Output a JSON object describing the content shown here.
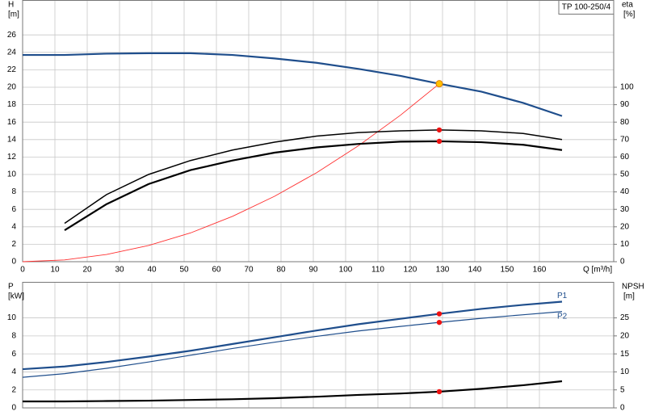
{
  "chart_data": [
    {
      "type": "line",
      "title": "TP 100-250/4",
      "xlabel": "Q [m³/h]",
      "ylabel": "H",
      "yunit": "[m]",
      "y2label": "eta",
      "y2unit": "[%]",
      "xlim": [
        0,
        183
      ],
      "ylim": [
        0,
        30
      ],
      "y2lim": [
        0,
        150
      ],
      "xticks": [
        0,
        10,
        20,
        30,
        40,
        50,
        60,
        70,
        80,
        90,
        100,
        110,
        120,
        130,
        140,
        150,
        160
      ],
      "yticks": [
        0,
        2,
        4,
        6,
        8,
        10,
        12,
        14,
        16,
        18,
        20,
        22,
        24,
        26
      ],
      "y2ticks": [
        0,
        10,
        20,
        30,
        40,
        50,
        60,
        70,
        80,
        90,
        100
      ],
      "grid": true,
      "operating_point": {
        "x": 129,
        "y": 20.4,
        "color": "#ffc000"
      },
      "series": [
        {
          "color": "#1f4e8c",
          "width": 2.2,
          "axis": "y",
          "x": [
            0,
            13,
            26,
            39,
            52,
            65,
            78,
            91,
            104,
            117,
            129,
            142,
            155,
            167
          ],
          "values": [
            23.7,
            23.7,
            23.85,
            23.9,
            23.9,
            23.7,
            23.3,
            22.8,
            22.1,
            21.3,
            20.4,
            19.5,
            18.2,
            16.7
          ]
        },
        {
          "color": "#ff3030",
          "width": 0.9,
          "axis": "y",
          "x": [
            0,
            13,
            26,
            39,
            52,
            65,
            78,
            91,
            104,
            117,
            129
          ],
          "values": [
            0,
            0.2,
            0.83,
            1.86,
            3.3,
            5.2,
            7.5,
            10.2,
            13.3,
            16.8,
            20.4
          ]
        },
        {
          "color": "#000000",
          "width": 1.5,
          "axis": "y2",
          "marker": "#ee1111",
          "x": [
            13,
            26,
            39,
            52,
            65,
            78,
            91,
            104,
            117,
            129,
            142,
            155,
            167
          ],
          "values": [
            22,
            38.5,
            50,
            58,
            64,
            68.5,
            72,
            74,
            75,
            75.5,
            75,
            73.5,
            70
          ]
        },
        {
          "color": "#000000",
          "width": 2.2,
          "axis": "y2",
          "marker": "#ee1111",
          "x": [
            13,
            26,
            39,
            52,
            65,
            78,
            91,
            104,
            117,
            129,
            142,
            155,
            167
          ],
          "values": [
            18,
            33,
            44.5,
            52.5,
            58,
            62.5,
            65.5,
            67.5,
            68.8,
            69,
            68.5,
            67,
            64
          ]
        }
      ]
    },
    {
      "type": "line",
      "ylabel": "P",
      "yunit": "[kW]",
      "y2label": "NPSH",
      "y2unit": "[m]",
      "xlim": [
        0,
        183
      ],
      "ylim": [
        0,
        14
      ],
      "y2lim": [
        0,
        35
      ],
      "yticks": [
        0,
        2,
        4,
        6,
        8,
        10
      ],
      "y2ticks": [
        0,
        5,
        10,
        15,
        20,
        25
      ],
      "grid": true,
      "series": [
        {
          "name": "P1",
          "color": "#1f4e8c",
          "width": 2.2,
          "axis": "y",
          "marker": "#ee1111",
          "x": [
            0,
            13,
            26,
            39,
            52,
            65,
            78,
            91,
            104,
            117,
            129,
            142,
            155,
            167
          ],
          "values": [
            4.3,
            4.6,
            5.1,
            5.7,
            6.35,
            7.1,
            7.85,
            8.6,
            9.3,
            9.9,
            10.45,
            11,
            11.45,
            11.8
          ]
        },
        {
          "name": "P2",
          "color": "#1f4e8c",
          "width": 1.2,
          "axis": "y",
          "marker": "#ee1111",
          "x": [
            0,
            13,
            26,
            39,
            52,
            65,
            78,
            91,
            104,
            117,
            129,
            142,
            155,
            167
          ],
          "values": [
            3.4,
            3.8,
            4.4,
            5.1,
            5.85,
            6.6,
            7.3,
            7.95,
            8.55,
            9.05,
            9.5,
            9.95,
            10.35,
            10.7
          ]
        },
        {
          "color": "#000000",
          "width": 2.2,
          "axis": "y2",
          "marker": "#ee1111",
          "x": [
            0,
            13,
            26,
            39,
            52,
            65,
            78,
            91,
            104,
            117,
            129,
            142,
            155,
            167
          ],
          "values": [
            1.8,
            1.8,
            1.9,
            2.0,
            2.2,
            2.4,
            2.7,
            3.1,
            3.6,
            4.0,
            4.5,
            5.3,
            6.3,
            7.4
          ]
        }
      ]
    }
  ]
}
